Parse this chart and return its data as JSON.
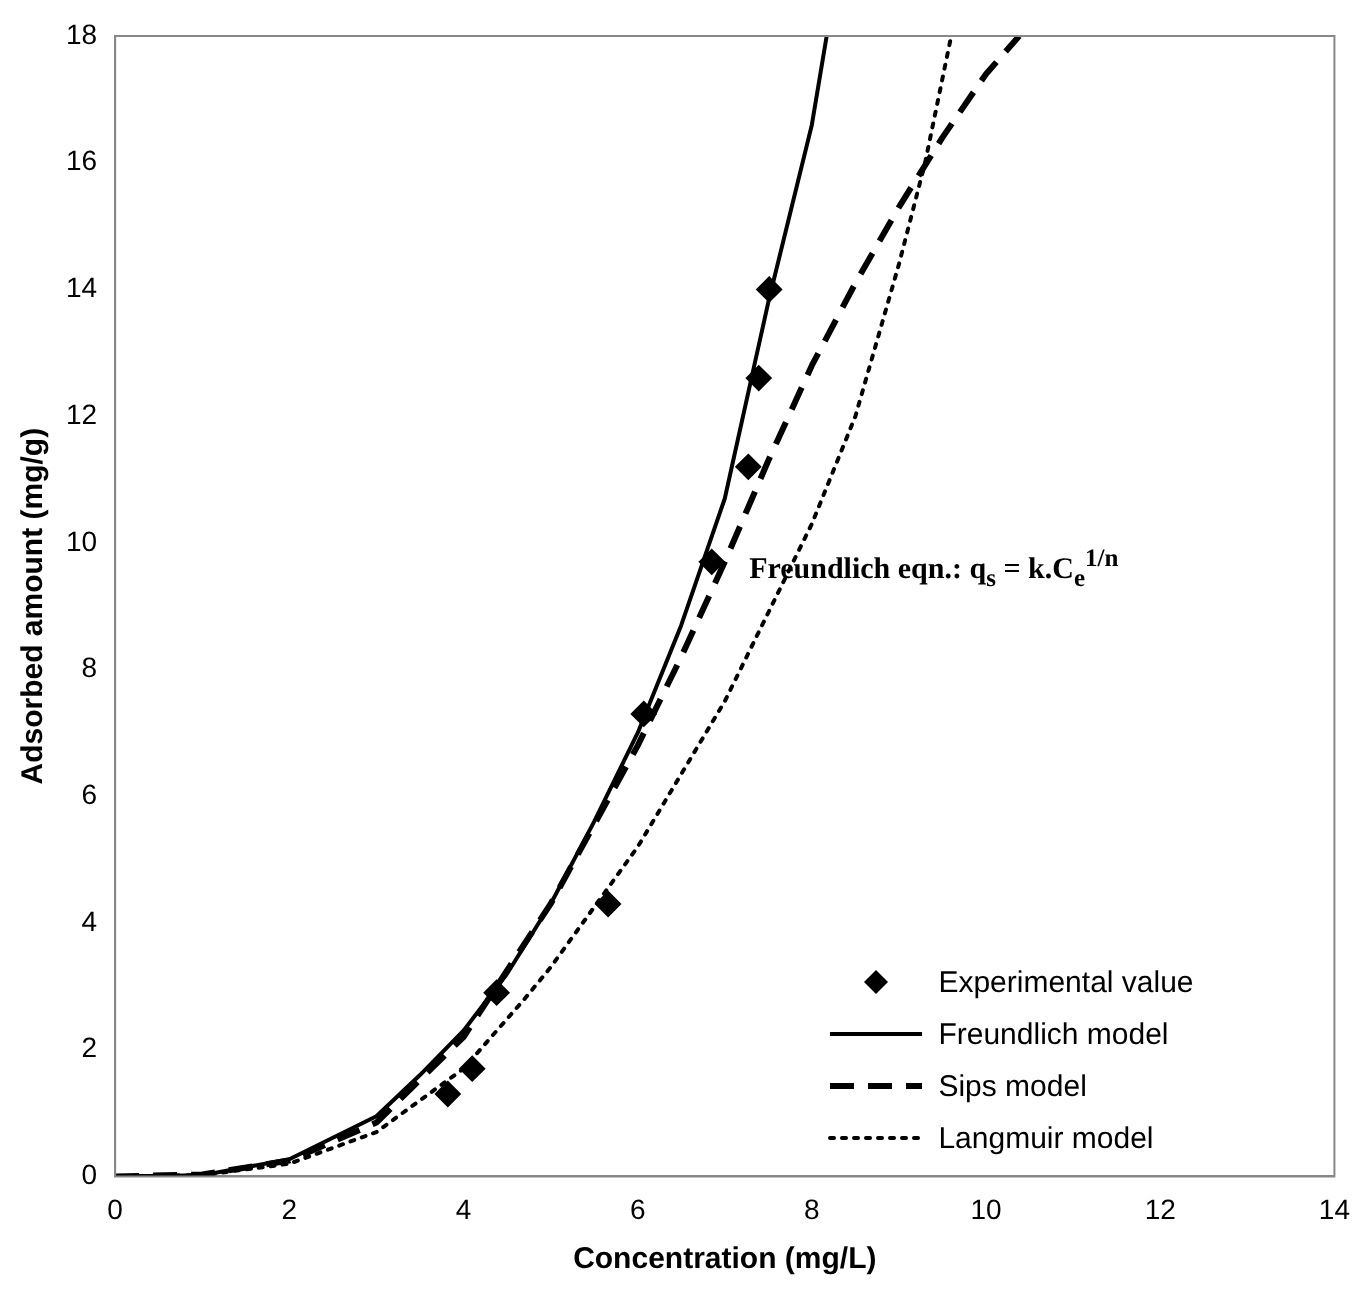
{
  "chart_data": {
    "type": "line",
    "xlabel": "Concentration (mg/L)",
    "ylabel": "Adsorbed amount (mg/g)",
    "xlim": [
      0,
      14
    ],
    "xticks": [
      0,
      2,
      4,
      6,
      8,
      10,
      12,
      14
    ],
    "ylim": [
      0,
      18
    ],
    "yticks": [
      0,
      2,
      4,
      6,
      8,
      10,
      12,
      14,
      16,
      18
    ],
    "grid": false,
    "legend": "bottom right",
    "annotations": [
      {
        "text": "Freundlich eqn.: q$_{s}$ = k.C$_{e}$$^{1/n}$"
      }
    ],
    "series": [
      {
        "name": "Experimental value",
        "type": "scatter",
        "color": "#000000",
        "marker": "diamond",
        "x": [
          3.82,
          4.1,
          4.38,
          5.66,
          6.07,
          6.85,
          7.27,
          7.39,
          7.51
        ],
        "values": [
          1.3,
          1.7,
          2.9,
          4.3,
          7.3,
          9.7,
          11.2,
          12.6,
          14.0
        ]
      },
      {
        "name": "Freundlich model",
        "type": "line",
        "color": "#000000",
        "line_style": "solid",
        "marker": "none",
        "x": [
          0,
          1,
          2,
          3,
          3.5,
          4,
          4.5,
          5,
          5.5,
          6,
          6.5,
          7,
          7.5,
          8,
          8.17
        ],
        "values": [
          0,
          0.02,
          0.27,
          0.95,
          1.6,
          2.3,
          3.2,
          4.3,
          5.6,
          7.0,
          8.7,
          10.7,
          13.8,
          16.6,
          18
        ]
      },
      {
        "name": "Sips model",
        "type": "line",
        "color": "#000000",
        "line_style": "dashed",
        "marker": "none",
        "x": [
          0,
          1,
          2,
          3,
          4,
          5,
          6,
          6.5,
          7,
          7.5,
          8,
          8.5,
          9,
          9.5,
          10,
          10.38
        ],
        "values": [
          0,
          0.03,
          0.25,
          0.85,
          2.2,
          4.3,
          6.8,
          8.2,
          9.7,
          11.3,
          12.8,
          14.1,
          15.3,
          16.4,
          17.4,
          18
        ]
      },
      {
        "name": "Langmuir model",
        "type": "line",
        "color": "#000000",
        "line_style": "dotted",
        "marker": "none",
        "x": [
          0,
          1,
          2,
          3,
          4,
          4.7,
          5,
          6,
          7,
          8,
          8.5,
          9,
          9.3,
          9.6
        ],
        "values": [
          0,
          0.02,
          0.2,
          0.7,
          1.7,
          2.8,
          3.3,
          5.2,
          7.5,
          10.3,
          12,
          14.4,
          16,
          18
        ]
      }
    ]
  }
}
